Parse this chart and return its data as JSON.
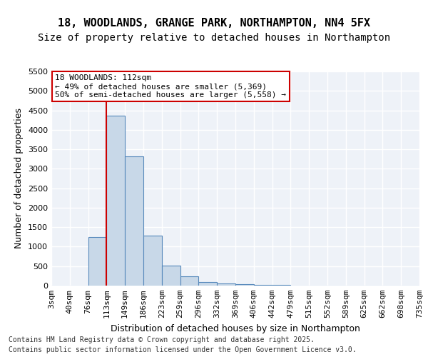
{
  "title1": "18, WOODLANDS, GRANGE PARK, NORTHAMPTON, NN4 5FX",
  "title2": "Size of property relative to detached houses in Northampton",
  "xlabel": "Distribution of detached houses by size in Northampton",
  "ylabel": "Number of detached properties",
  "bin_labels": [
    "3sqm",
    "40sqm",
    "76sqm",
    "113sqm",
    "149sqm",
    "186sqm",
    "223sqm",
    "259sqm",
    "296sqm",
    "332sqm",
    "369sqm",
    "406sqm",
    "442sqm",
    "479sqm",
    "515sqm",
    "552sqm",
    "589sqm",
    "625sqm",
    "662sqm",
    "698sqm",
    "735sqm"
  ],
  "bar_heights": [
    0,
    0,
    1255,
    4370,
    3310,
    1280,
    510,
    230,
    100,
    60,
    30,
    15,
    10,
    5,
    3,
    2,
    1,
    1,
    0,
    0
  ],
  "bar_color": "#c8d8e8",
  "bar_edge_color": "#5588bb",
  "background_color": "#eef2f8",
  "grid_color": "#ffffff",
  "annotation_text": "18 WOODLANDS: 112sqm\n← 49% of detached houses are smaller (5,369)\n50% of semi-detached houses are larger (5,558) →",
  "vline_color": "#cc0000",
  "annotation_box_color": "#cc0000",
  "ylim": [
    0,
    5500
  ],
  "yticks": [
    0,
    500,
    1000,
    1500,
    2000,
    2500,
    3000,
    3500,
    4000,
    4500,
    5000,
    5500
  ],
  "footer1": "Contains HM Land Registry data © Crown copyright and database right 2025.",
  "footer2": "Contains public sector information licensed under the Open Government Licence v3.0.",
  "title_fontsize": 11,
  "subtitle_fontsize": 10,
  "axis_label_fontsize": 9,
  "tick_fontsize": 8,
  "annotation_fontsize": 8,
  "footer_fontsize": 7
}
